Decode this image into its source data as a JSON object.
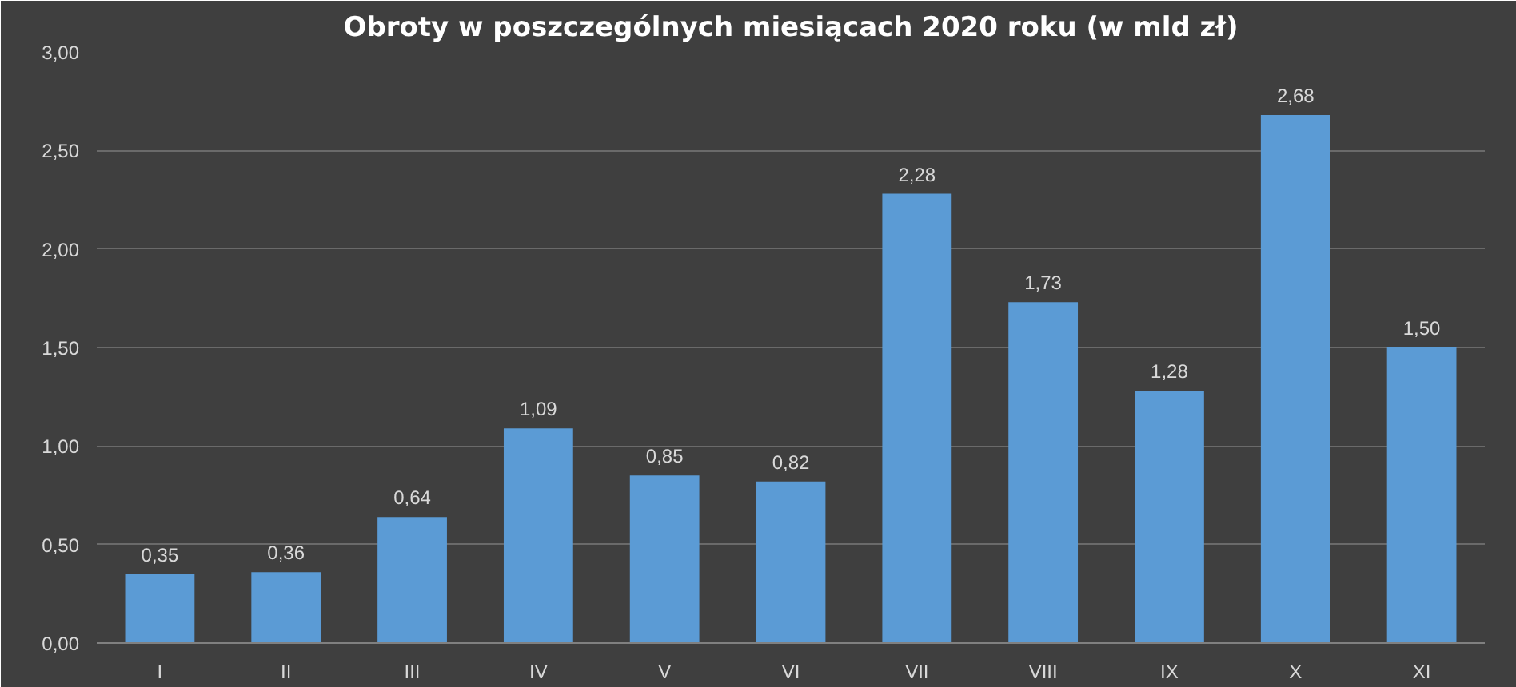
{
  "chart_data": {
    "type": "bar",
    "title": "Obroty w poszczególnych miesiącach 2020 roku (w mld zł)",
    "categories": [
      "I",
      "II",
      "III",
      "IV",
      "V",
      "VI",
      "VII",
      "VIII",
      "IX",
      "X",
      "XI"
    ],
    "values": [
      0.35,
      0.36,
      0.64,
      1.09,
      0.85,
      0.82,
      2.28,
      1.73,
      1.28,
      2.68,
      1.5
    ],
    "value_labels": [
      "0,35",
      "0,36",
      "0,64",
      "1,09",
      "0,85",
      "0,82",
      "2,28",
      "1,73",
      "1,28",
      "2,68",
      "1,50"
    ],
    "color": "#5b9bd5",
    "ylim": [
      0,
      3
    ],
    "yticks": [
      {
        "value": 0,
        "label": "0,00"
      },
      {
        "value": 0.5,
        "label": "0,50"
      },
      {
        "value": 1,
        "label": "1,00"
      },
      {
        "value": 1.5,
        "label": "1,50"
      },
      {
        "value": 2,
        "label": "2,00"
      },
      {
        "value": 2.5,
        "label": "2,50"
      },
      {
        "value": 3,
        "label": "3,00"
      }
    ],
    "grid": "y"
  }
}
